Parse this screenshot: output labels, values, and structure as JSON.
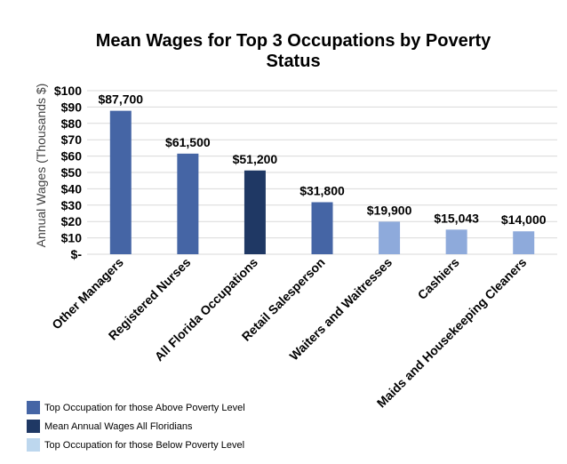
{
  "chart_data": {
    "type": "bar",
    "title_lines": [
      "Mean Wages for Top 3 Occupations by Poverty",
      "Status"
    ],
    "xlabel": "",
    "ylabel": "Annual Wages (Thousands $)",
    "ylim": [
      0,
      100
    ],
    "yticks": [
      0,
      10,
      20,
      30,
      40,
      50,
      60,
      70,
      80,
      90,
      100
    ],
    "ytick_labels": [
      "$-",
      "$10",
      "$20",
      "$30",
      "$40",
      "$50",
      "$60",
      "$70",
      "$80",
      "$90",
      "$100"
    ],
    "grid": true,
    "categories": [
      "Other Managers",
      "Registered Nurses",
      "All Florida Occupations",
      "Retail Salesperson",
      "Waiters and Waitresses",
      "Cashiers",
      "Maids and Housekeeping Cleaners"
    ],
    "values": [
      87.7,
      61.5,
      51.2,
      31.8,
      19.9,
      15.043,
      14.0
    ],
    "data_labels": [
      "$87,700",
      "$61,500",
      "$51,200",
      "$31,800",
      "$19,900",
      "$15,043",
      "$14,000"
    ],
    "bar_groups": [
      "above",
      "above",
      "mean",
      "above",
      "below",
      "below",
      "below"
    ],
    "group_colors": {
      "above": "#4565a5",
      "mean": "#1f3864",
      "below": "#8eaadb"
    },
    "legend": [
      {
        "label": "Top Occupation for those Above Poverty Level",
        "color": "#4565a5"
      },
      {
        "label": "Mean Annual Wages All Floridians",
        "color": "#1f3864"
      },
      {
        "label": "Top Occupation for those Below Poverty Level",
        "color": "#bdd7ee"
      }
    ]
  }
}
